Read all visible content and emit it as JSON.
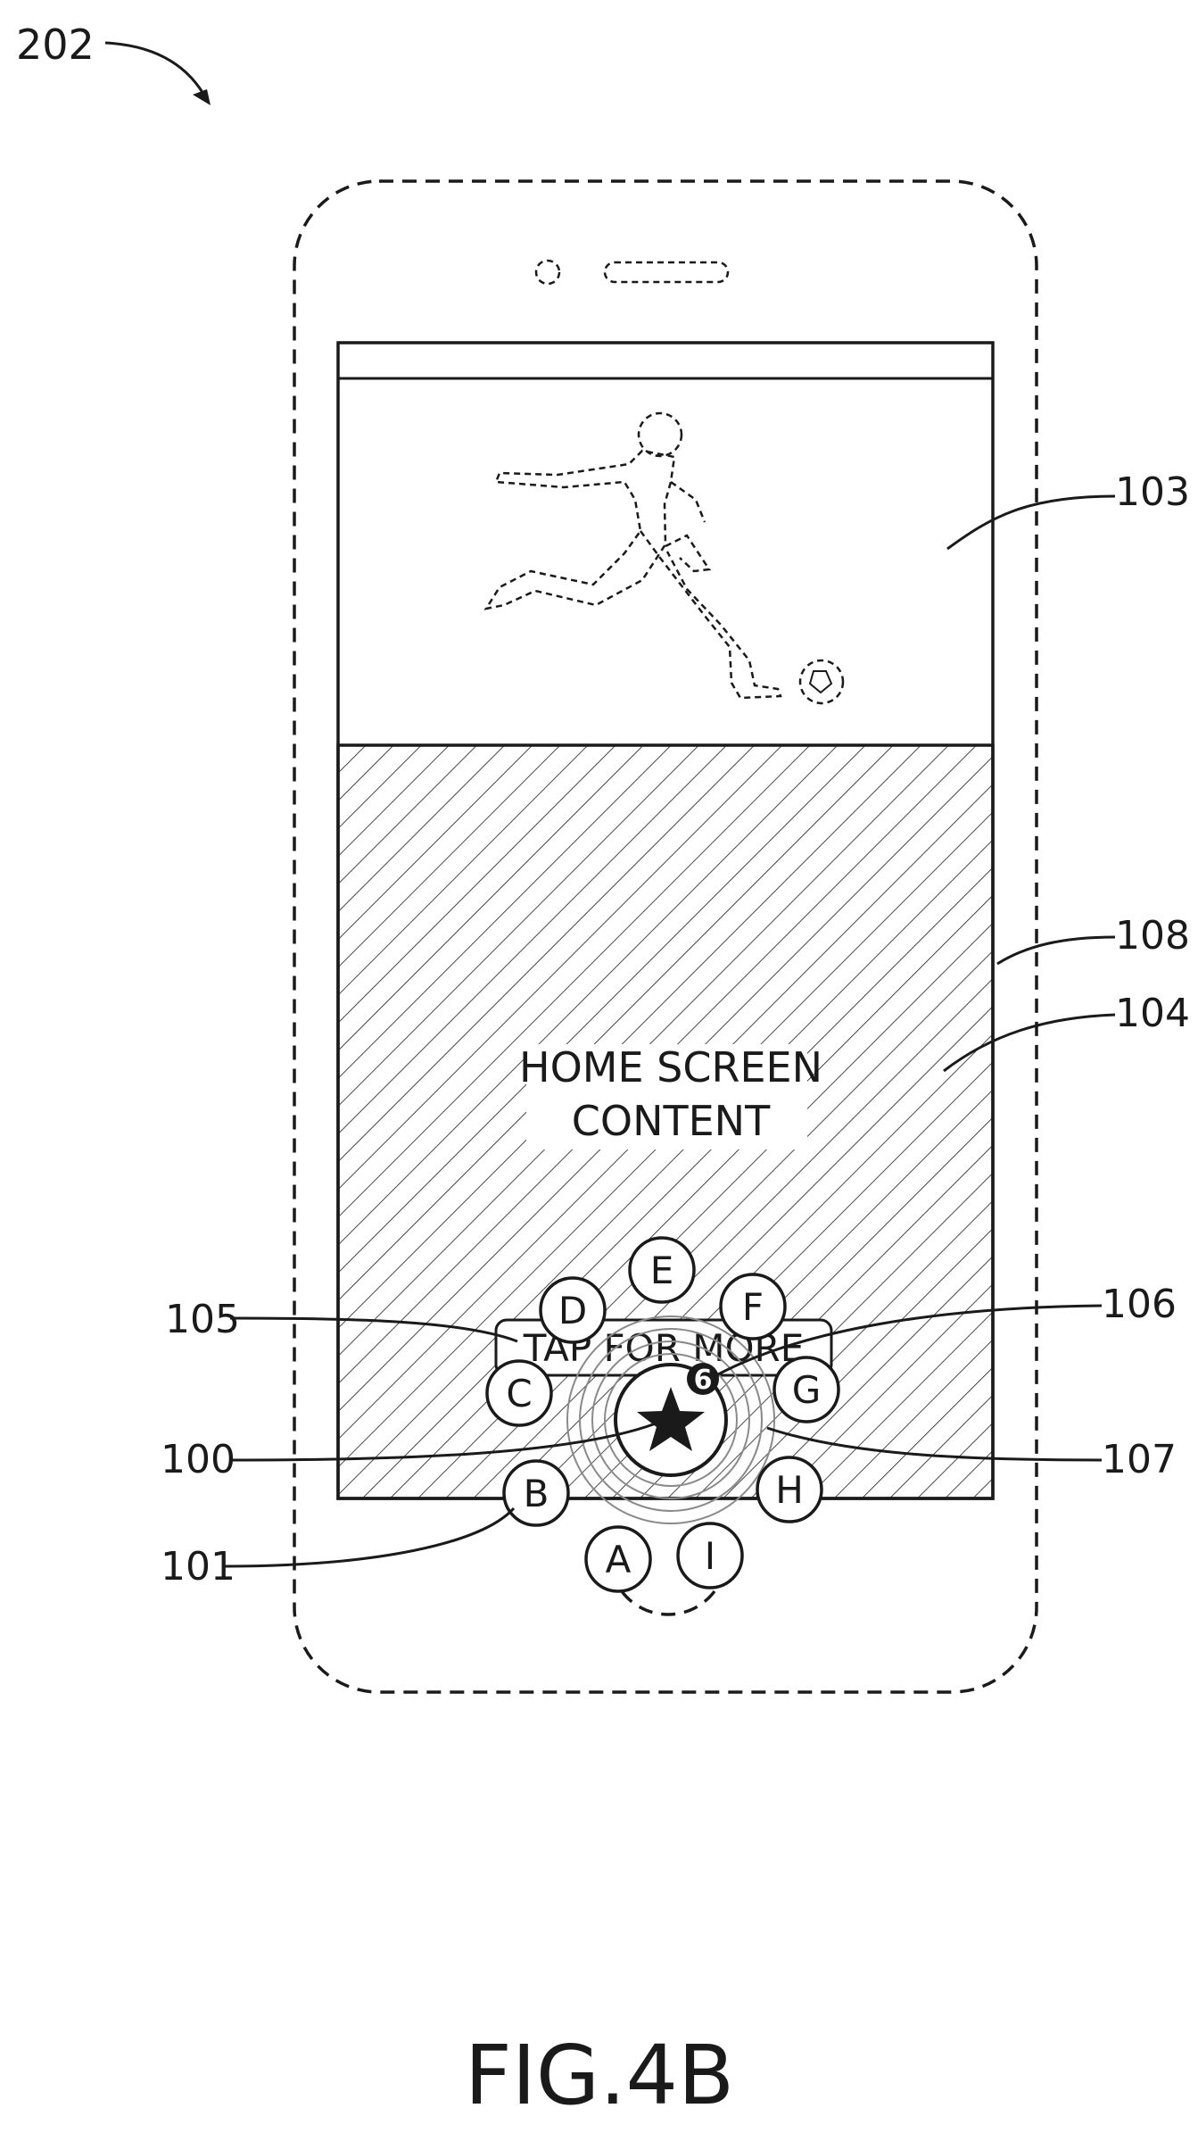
{
  "figure": {
    "id_label": "202",
    "caption": "FIG.4B"
  },
  "screen": {
    "content_text_line1": "HOME SCREEN",
    "content_text_line2": "CONTENT",
    "tap_button_label": "TAP FOR MORE",
    "notification_count": "6"
  },
  "menu_buttons": [
    "A",
    "B",
    "C",
    "D",
    "E",
    "F",
    "G",
    "H",
    "I"
  ],
  "reference_labels": {
    "r100": "100",
    "r101": "101",
    "r103": "103",
    "r104": "104",
    "r105": "105",
    "r106": "106",
    "r107": "107",
    "r108": "108"
  },
  "colors": {
    "ink": "#1a1a1a",
    "background": "#ffffff"
  }
}
